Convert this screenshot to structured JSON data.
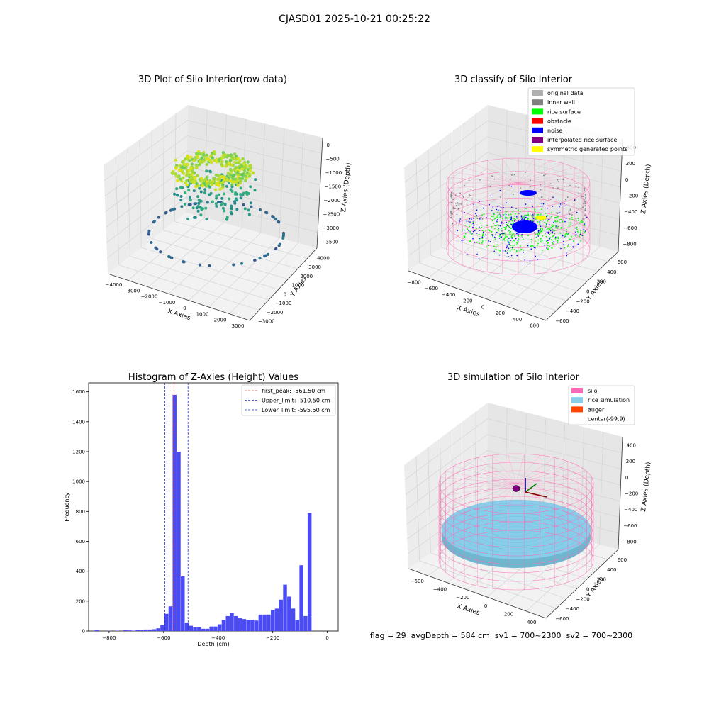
{
  "figure": {
    "suptitle": "CJASD01 2025-10-21 00:25:22",
    "footer": "flag = 29  avgDepth = 584 cm  sv1 = 700~2300  sv2 = 700~2300"
  },
  "colors": {
    "hist_bar": "#4b4bf5",
    "first_peak_line": "#e8392c",
    "limit_lines": "#2233cc",
    "silo": "#ff69b4",
    "rice_simulation": "#87ceeb",
    "auger": "#ff4500",
    "original_data": "#b0b0b0",
    "inner_wall": "#808080",
    "rice_surface": "#00ff00",
    "obstacle": "#ff0000",
    "noise": "#0000ff",
    "interpolated_rice_surface": "#800080",
    "symmetric_generated_points": "#ffff00",
    "viridis_low": "#3b4b8c",
    "viridis_high": "#e4e419"
  },
  "chart_data": [
    {
      "type": "scatter",
      "projection": "3d",
      "title": "3D Plot of Silo Interior(row data)",
      "xlabel": "X Axies",
      "ylabel": "Y Axies",
      "zlabel": "Z Axies (Depth)",
      "x_ticks": [
        "−4000",
        "−3000",
        "−2000",
        "−1000",
        "0",
        "1000",
        "2000",
        "3000"
      ],
      "y_ticks": [
        "−3000",
        "−2000",
        "−1000",
        "0",
        "1000",
        "2000",
        "3000",
        "4000"
      ],
      "z_ticks": [
        "0",
        "−500",
        "−1000",
        "−1500",
        "−2000",
        "−2500",
        "−3000",
        "−3500"
      ],
      "colormap": "viridis",
      "description_points": "dense ring of points near top (z≈-500 to -1500) with sparse outer points near bottom"
    },
    {
      "type": "scatter",
      "projection": "3d",
      "title": "3D classify of Silo Interior",
      "xlabel": "X Axies",
      "ylabel": "Y Axies",
      "zlabel": "Z Axies (Depth)",
      "x_ticks": [
        "−800",
        "−600",
        "−400",
        "−200",
        "0",
        "200",
        "400",
        "600"
      ],
      "y_ticks": [
        "−600",
        "−400",
        "−200",
        "0",
        "200",
        "400",
        "600"
      ],
      "z_ticks": [
        "400",
        "200",
        "0",
        "−200",
        "−400",
        "−600",
        "−800"
      ],
      "legend": [
        "original data",
        "inner wall",
        "rice surface",
        "obstacle",
        "noise",
        "interpolated rice surface",
        "symmetric generated points"
      ],
      "legend_position": "top-right"
    },
    {
      "type": "bar",
      "title": "Histogram of Z-Axies (Height) Values",
      "xlabel": "Depth (cm)",
      "ylabel": "Frequency",
      "xlim": [
        -875,
        40
      ],
      "ylim": [
        0,
        1660
      ],
      "x_ticks": [
        -800,
        -600,
        -400,
        -200,
        0
      ],
      "x_tick_labels": [
        "−800",
        "−600",
        "−400",
        "−200",
        "0"
      ],
      "y_ticks": [
        0,
        200,
        400,
        600,
        800,
        1000,
        1200,
        1400,
        1600
      ],
      "bin_width": 15,
      "bins": [
        {
          "x": -852,
          "v": 5
        },
        {
          "x": -837,
          "v": 0
        },
        {
          "x": -822,
          "v": 0
        },
        {
          "x": -807,
          "v": 2
        },
        {
          "x": -792,
          "v": 0
        },
        {
          "x": -777,
          "v": 2
        },
        {
          "x": -762,
          "v": 0
        },
        {
          "x": -747,
          "v": 5
        },
        {
          "x": -732,
          "v": 4
        },
        {
          "x": -717,
          "v": 2
        },
        {
          "x": -702,
          "v": 6
        },
        {
          "x": -687,
          "v": 5
        },
        {
          "x": -672,
          "v": 10
        },
        {
          "x": -657,
          "v": 10
        },
        {
          "x": -642,
          "v": 12
        },
        {
          "x": -627,
          "v": 18
        },
        {
          "x": -612,
          "v": 40
        },
        {
          "x": -597,
          "v": 115
        },
        {
          "x": -582,
          "v": 165
        },
        {
          "x": -567,
          "v": 1580
        },
        {
          "x": -552,
          "v": 1200
        },
        {
          "x": -537,
          "v": 365
        },
        {
          "x": -522,
          "v": 55
        },
        {
          "x": -507,
          "v": 35
        },
        {
          "x": -492,
          "v": 25
        },
        {
          "x": -477,
          "v": 25
        },
        {
          "x": -462,
          "v": 15
        },
        {
          "x": -447,
          "v": 15
        },
        {
          "x": -432,
          "v": 30
        },
        {
          "x": -417,
          "v": 30
        },
        {
          "x": -402,
          "v": 45
        },
        {
          "x": -387,
          "v": 75
        },
        {
          "x": -372,
          "v": 100
        },
        {
          "x": -357,
          "v": 120
        },
        {
          "x": -342,
          "v": 100
        },
        {
          "x": -327,
          "v": 85
        },
        {
          "x": -312,
          "v": 80
        },
        {
          "x": -297,
          "v": 75
        },
        {
          "x": -282,
          "v": 75
        },
        {
          "x": -267,
          "v": 70
        },
        {
          "x": -252,
          "v": 110
        },
        {
          "x": -237,
          "v": 110
        },
        {
          "x": -222,
          "v": 110
        },
        {
          "x": -207,
          "v": 140
        },
        {
          "x": -192,
          "v": 150
        },
        {
          "x": -177,
          "v": 210
        },
        {
          "x": -162,
          "v": 310
        },
        {
          "x": -147,
          "v": 230
        },
        {
          "x": -132,
          "v": 150
        },
        {
          "x": -117,
          "v": 75
        },
        {
          "x": -102,
          "v": 440
        },
        {
          "x": -87,
          "v": 100
        },
        {
          "x": -72,
          "v": 790
        }
      ],
      "vlines": [
        {
          "x": -561.5,
          "label": "first_peak: -561.50 cm",
          "style": "red"
        },
        {
          "x": -510.5,
          "label": "Upper_limit: -510.50 cm",
          "style": "blue"
        },
        {
          "x": -595.5,
          "label": "Lower_limit: -595.50 cm",
          "style": "blue"
        }
      ],
      "legend_position": "top-right"
    },
    {
      "type": "scatter",
      "projection": "3d",
      "title": "3D simulation of Silo Interior",
      "xlabel": "X Axies",
      "ylabel": "Y Axies",
      "zlabel": "Z Axies (Depth)",
      "x_ticks": [
        "−600",
        "−400",
        "−200",
        "0",
        "200",
        "400"
      ],
      "y_ticks": [
        "−600",
        "−400",
        "−200",
        "0",
        "200",
        "400",
        "600"
      ],
      "z_ticks": [
        "400",
        "200",
        "0",
        "−200",
        "−400",
        "−600",
        "−800"
      ],
      "legend": [
        "silo",
        "rice simulation",
        "auger",
        "center(-99,9)"
      ],
      "legend_position": "top-right"
    }
  ]
}
